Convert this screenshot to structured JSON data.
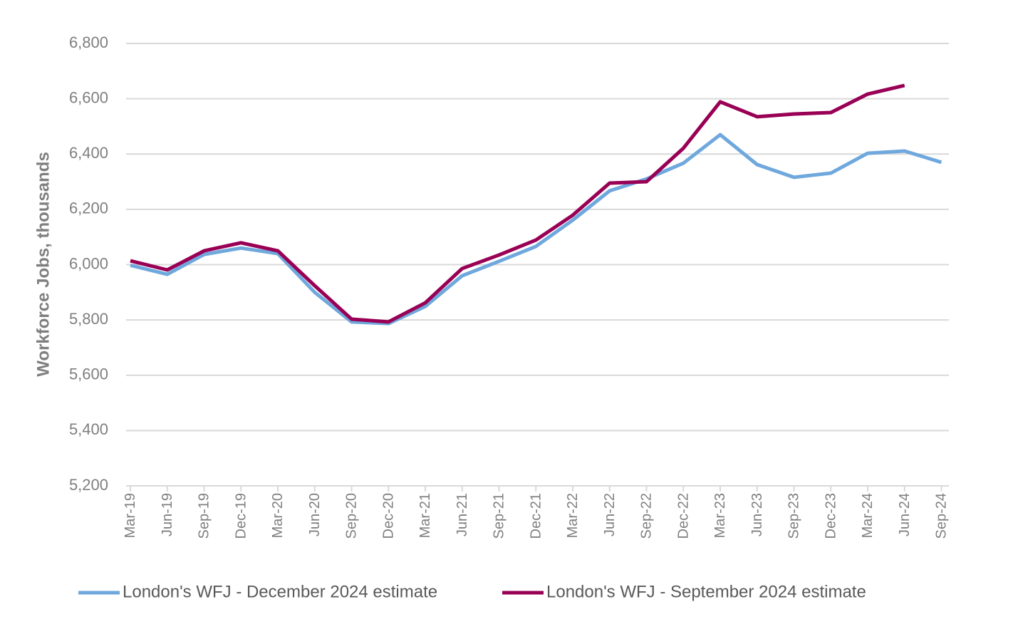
{
  "chart_data": {
    "type": "line",
    "y_label": "Workforce Jobs, thousands",
    "categories": [
      "Mar-19",
      "Jun-19",
      "Sep-19",
      "Dec-19",
      "Mar-20",
      "Jun-20",
      "Sep-20",
      "Dec-20",
      "Mar-21",
      "Jun-21",
      "Sep-21",
      "Dec-21",
      "Mar-22",
      "Jun-22",
      "Sep-22",
      "Dec-22",
      "Mar-23",
      "Jun-23",
      "Sep-23",
      "Dec-23",
      "Mar-24",
      "Jun-24",
      "Sep-24"
    ],
    "series": [
      {
        "name": "London's WFJ - December 2024 estimate",
        "color": "#6fa8dc",
        "values": [
          5998,
          5965,
          6037,
          6060,
          6040,
          5900,
          5793,
          5787,
          5849,
          5960,
          6012,
          6066,
          6161,
          6267,
          6310,
          6367,
          6470,
          6362,
          6316,
          6331,
          6403,
          6411,
          6370
        ]
      },
      {
        "name": "London's WFJ - September 2024 estimate",
        "color": "#990055",
        "values": [
          6014,
          5981,
          6050,
          6079,
          6050,
          5924,
          5803,
          5793,
          5862,
          5986,
          6035,
          6089,
          6179,
          6295,
          6300,
          6421,
          6589,
          6535,
          6545,
          6550,
          6617,
          6648,
          null
        ]
      }
    ],
    "ylim": [
      5200,
      6800
    ],
    "yticks": [
      {
        "value": 5200,
        "label": "5,200"
      },
      {
        "value": 5400,
        "label": "5,400"
      },
      {
        "value": 5600,
        "label": "5,600"
      },
      {
        "value": 5800,
        "label": "5,800"
      },
      {
        "value": 6000,
        "label": "6,000"
      },
      {
        "value": 6200,
        "label": "6,200"
      },
      {
        "value": 6400,
        "label": "6,400"
      },
      {
        "value": 6600,
        "label": "6,600"
      },
      {
        "value": 6800,
        "label": "6,800"
      }
    ],
    "grid": true,
    "legend": "bottom"
  }
}
